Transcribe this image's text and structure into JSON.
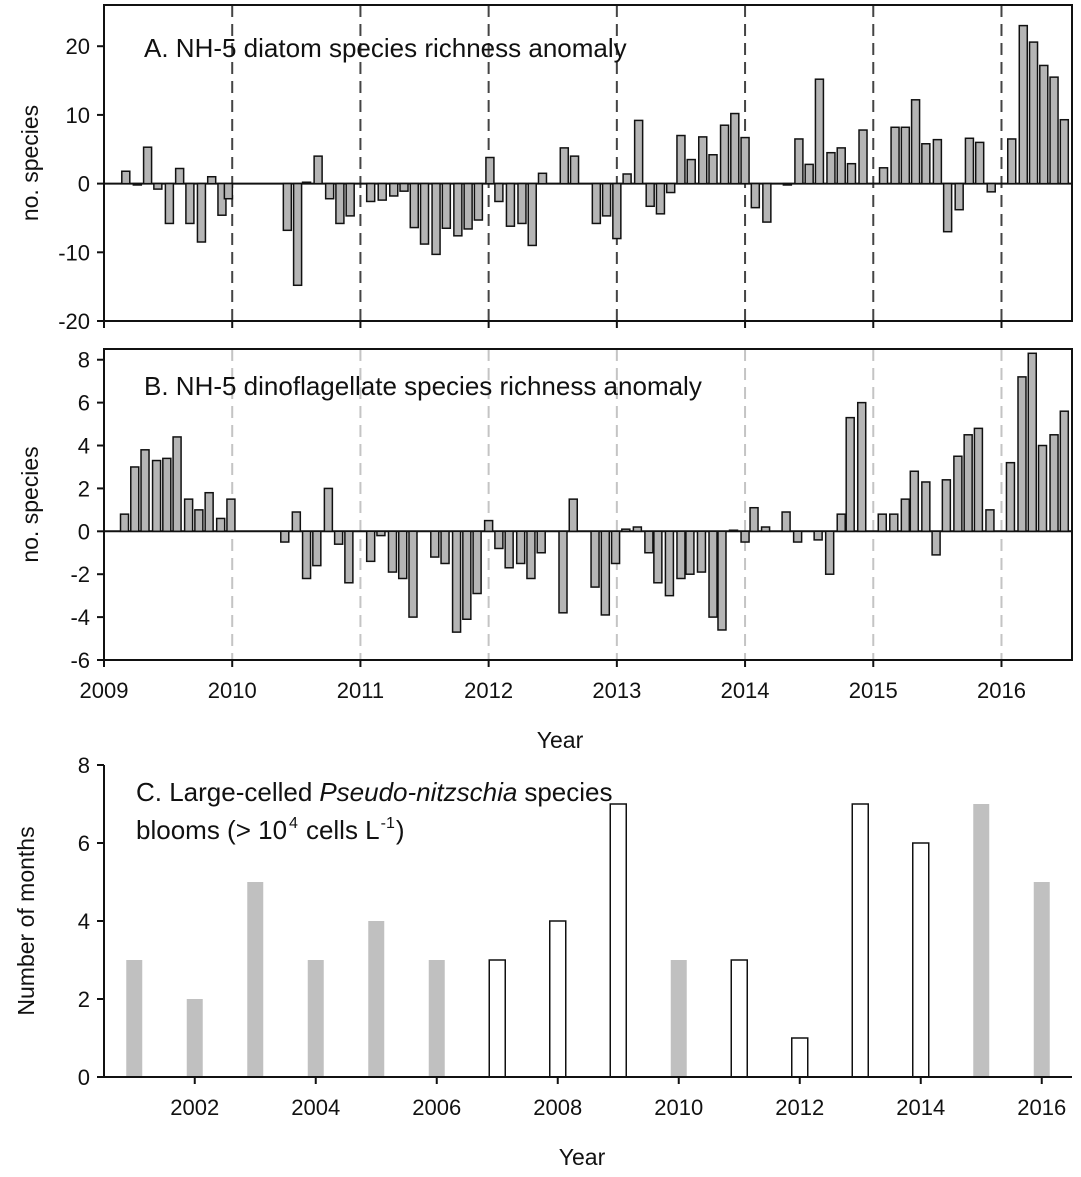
{
  "chart_data": [
    {
      "type": "bar",
      "title": "A. NH-5 diatom species richness anomaly",
      "ylabel": "no. species",
      "x": [
        2009.17,
        2009.26,
        2009.34,
        2009.42,
        2009.51,
        2009.59,
        2009.67,
        2009.76,
        2009.84,
        2009.92,
        2009.97,
        2010.43,
        2010.51,
        2010.58,
        2010.67,
        2010.76,
        2010.84,
        2010.92,
        2011.08,
        2011.17,
        2011.26,
        2011.34,
        2011.42,
        2011.5,
        2011.59,
        2011.67,
        2011.76,
        2011.84,
        2011.92,
        2012.01,
        2012.08,
        2012.17,
        2012.26,
        2012.34,
        2012.42,
        2012.59,
        2012.67,
        2012.84,
        2012.92,
        2013.0,
        2013.08,
        2013.17,
        2013.26,
        2013.34,
        2013.42,
        2013.5,
        2013.58,
        2013.67,
        2013.75,
        2013.84,
        2013.92,
        2014.0,
        2014.08,
        2014.17,
        2014.33,
        2014.42,
        2014.5,
        2014.58,
        2014.67,
        2014.75,
        2014.83,
        2014.92,
        2015.08,
        2015.17,
        2015.25,
        2015.33,
        2015.41,
        2015.5,
        2015.58,
        2015.67,
        2015.75,
        2015.83,
        2015.92,
        2016.08,
        2016.17,
        2016.25,
        2016.33,
        2016.41,
        2016.49
      ],
      "values": [
        1.8,
        -0.2,
        5.3,
        -0.8,
        -5.8,
        2.2,
        -5.8,
        -8.5,
        1.0,
        -4.6,
        -2.2,
        -6.8,
        -14.8,
        0.2,
        4.0,
        -2.2,
        -5.8,
        -4.7,
        -2.6,
        -2.4,
        -1.8,
        -1.1,
        -6.4,
        -8.8,
        -10.3,
        -6.5,
        -7.6,
        -6.6,
        -5.3,
        3.8,
        -2.6,
        -6.2,
        -5.8,
        -9.0,
        1.5,
        5.2,
        4.0,
        -5.8,
        -4.7,
        -8.0,
        1.4,
        9.2,
        -3.3,
        -4.4,
        -1.3,
        7.0,
        3.5,
        6.8,
        4.2,
        8.5,
        10.2,
        6.7,
        -3.5,
        -5.6,
        -0.2,
        6.5,
        2.8,
        15.2,
        4.5,
        5.2,
        2.9,
        7.8,
        2.3,
        8.2,
        8.2,
        12.2,
        5.8,
        6.4,
        -7.0,
        -3.8,
        6.6,
        6.0,
        -1.2,
        6.5,
        23.0,
        20.6,
        17.2,
        15.5,
        9.3
      ],
      "color": "#b5b5b5",
      "xlim": [
        2009,
        2016.55
      ],
      "xticks": [
        2009,
        2010,
        2011,
        2012,
        2013,
        2014,
        2015,
        2016
      ],
      "xtick_labels": false,
      "ylim": [
        -20,
        26
      ],
      "yticks": [
        -20,
        -10,
        0,
        10,
        20
      ],
      "grid": "x",
      "grid_color": "#444444",
      "frame": "box"
    },
    {
      "type": "bar",
      "title": "B. NH-5 dinoflagellate species richness anomaly",
      "ylabel": "no. species",
      "xlabel": "Year",
      "x": [
        2009.16,
        2009.24,
        2009.32,
        2009.41,
        2009.49,
        2009.57,
        2009.66,
        2009.74,
        2009.82,
        2009.91,
        2009.99,
        2010.41,
        2010.5,
        2010.58,
        2010.66,
        2010.75,
        2010.83,
        2010.91,
        2011.08,
        2011.16,
        2011.25,
        2011.33,
        2011.41,
        2011.58,
        2011.66,
        2011.75,
        2011.83,
        2011.91,
        2012.0,
        2012.08,
        2012.16,
        2012.25,
        2012.33,
        2012.41,
        2012.58,
        2012.66,
        2012.83,
        2012.91,
        2012.99,
        2013.07,
        2013.16,
        2013.25,
        2013.32,
        2013.41,
        2013.5,
        2013.57,
        2013.66,
        2013.75,
        2013.82,
        2013.91,
        2014.0,
        2014.07,
        2014.16,
        2014.32,
        2014.41,
        2014.57,
        2014.66,
        2014.75,
        2014.82,
        2014.91,
        2015.07,
        2015.16,
        2015.25,
        2015.32,
        2015.41,
        2015.49,
        2015.57,
        2015.66,
        2015.74,
        2015.82,
        2015.91,
        2016.07,
        2016.16,
        2016.24,
        2016.32,
        2016.41,
        2016.49
      ],
      "values": [
        0.8,
        3.0,
        3.8,
        3.3,
        3.4,
        4.4,
        1.5,
        1.0,
        1.8,
        0.6,
        1.5,
        -0.5,
        0.9,
        -2.2,
        -1.6,
        2.0,
        -0.6,
        -2.4,
        -1.4,
        -0.2,
        -1.9,
        -2.2,
        -4.0,
        -1.2,
        -1.5,
        -4.7,
        -4.1,
        -2.9,
        0.5,
        -0.8,
        -1.7,
        -1.5,
        -2.2,
        -1.0,
        -3.8,
        1.5,
        -2.6,
        -3.9,
        -1.5,
        0.1,
        0.2,
        -1.0,
        -2.4,
        -3.0,
        -2.2,
        -2.0,
        -1.9,
        -4.0,
        -4.6,
        0.05,
        -0.5,
        1.1,
        0.2,
        0.9,
        -0.5,
        -0.4,
        -2.0,
        0.8,
        5.3,
        6.0,
        0.8,
        0.8,
        1.5,
        2.8,
        2.3,
        -1.1,
        2.4,
        3.5,
        4.5,
        4.8,
        1.0,
        3.2,
        7.2,
        8.3,
        4.0,
        4.5,
        5.6
      ],
      "color": "#b5b5b5",
      "xlim": [
        2009,
        2016.55
      ],
      "xticks": [
        2009,
        2010,
        2011,
        2012,
        2013,
        2014,
        2015,
        2016
      ],
      "ylim": [
        -6,
        8.5
      ],
      "yticks": [
        -6,
        -4,
        -2,
        0,
        2,
        4,
        6,
        8
      ],
      "grid": "x",
      "grid_color": "#c4c4c4",
      "frame": "box"
    },
    {
      "type": "bar",
      "title": {
        "line1": [
          "C. Large-celled",
          "Pseudo-nitzschia",
          "species"
        ],
        "line2": [
          "blooms (> 10",
          "4",
          "cells L",
          "-1",
          ")"
        ]
      },
      "ylabel": "Number of months",
      "xlabel": "Year",
      "x": [
        2001,
        2002,
        2003,
        2004,
        2005,
        2006,
        2007,
        2008,
        2009,
        2010,
        2011,
        2012,
        2013,
        2014,
        2015,
        2016
      ],
      "values": [
        3,
        2,
        5,
        3,
        4,
        3,
        3,
        4,
        7,
        3,
        3,
        1,
        7,
        6,
        7,
        5
      ],
      "colors": [
        "#c0c0c0",
        "#c0c0c0",
        "#c0c0c0",
        "#c0c0c0",
        "#c0c0c0",
        "#c0c0c0",
        "#ffffff",
        "#ffffff",
        "#ffffff",
        "#c0c0c0",
        "#ffffff",
        "#ffffff",
        "#ffffff",
        "#ffffff",
        "#c0c0c0",
        "#c0c0c0"
      ],
      "xlim": [
        2000.5,
        2016.5
      ],
      "xticks": [
        2002,
        2004,
        2006,
        2008,
        2010,
        2012,
        2014,
        2016
      ],
      "ylim": [
        0,
        8
      ],
      "yticks": [
        0,
        2,
        4,
        6,
        8
      ],
      "frame": "axes"
    }
  ]
}
